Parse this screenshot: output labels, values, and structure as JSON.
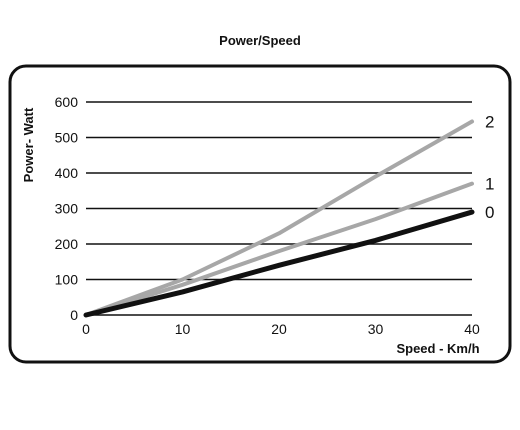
{
  "chart_data": {
    "type": "line",
    "title": "Power/Speed",
    "xlabel": "Speed - Km/h",
    "ylabel": "Power- Watt",
    "xlim": [
      0,
      40
    ],
    "ylim": [
      0,
      600
    ],
    "x_ticks": [
      "0",
      "10",
      "20",
      "30",
      "40"
    ],
    "y_ticks": [
      "0",
      "100",
      "200",
      "300",
      "400",
      "500",
      "600"
    ],
    "grid": "horizontal",
    "series": [
      {
        "name": "0",
        "color": "#111111",
        "x": [
          0,
          10,
          20,
          30,
          40
        ],
        "y": [
          0,
          65,
          140,
          210,
          290
        ]
      },
      {
        "name": "1",
        "color": "#a7a7a7",
        "x": [
          0,
          10,
          20,
          30,
          40
        ],
        "y": [
          0,
          85,
          180,
          270,
          370
        ]
      },
      {
        "name": "2",
        "color": "#a7a7a7",
        "x": [
          0,
          10,
          20,
          30,
          40
        ],
        "y": [
          0,
          100,
          230,
          390,
          545
        ]
      }
    ]
  }
}
